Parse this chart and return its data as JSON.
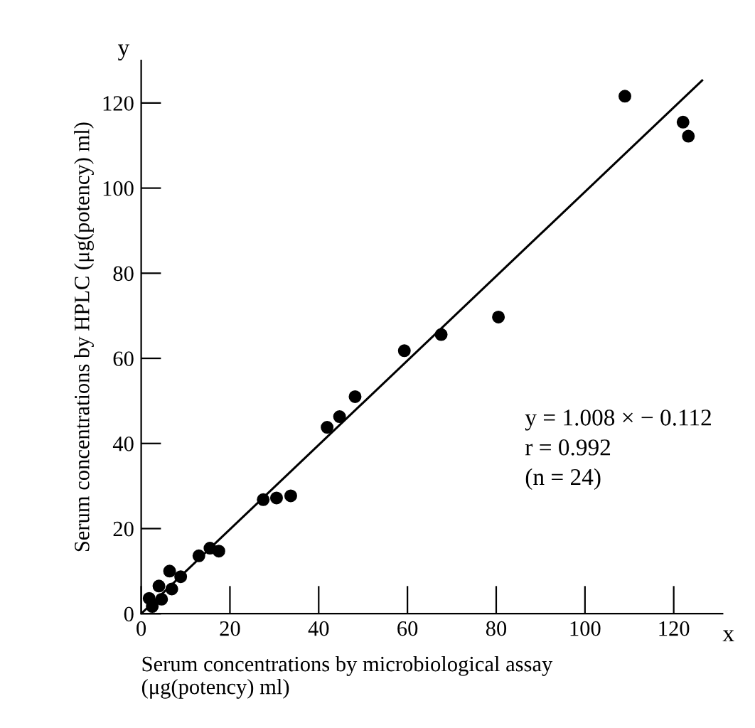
{
  "chart_data": {
    "type": "scatter",
    "xlabel": "Serum concentrations by microbiological assay\n(μg(potency) ml)",
    "ylabel": "Serum concentrations by HPLC (μg(potency) ml)",
    "annotations": [
      "x",
      "y",
      "y = 1.008 × − 0.112\nr = 0.992\n(n = 24)"
    ],
    "xlim": [
      0,
      131
    ],
    "ylim": [
      0,
      130
    ],
    "xticks": [
      0,
      20,
      40,
      60,
      80,
      100,
      120
    ],
    "yticks": [
      0,
      20,
      40,
      60,
      80,
      100,
      120
    ],
    "grid": false,
    "legend": false,
    "series": [
      {
        "color": "#000000",
        "marker": "circle",
        "x": [
          1.8,
          2.5,
          4.0,
          4.6,
          6.4,
          6.9,
          8.9,
          13.0,
          15.5,
          17.5,
          27.5,
          30.5,
          33.7,
          41.9,
          44.7,
          48.2,
          59.3,
          67.6,
          80.5,
          109.0,
          122.1,
          123.3
        ],
        "values": [
          3.6,
          1.7,
          6.5,
          3.4,
          10.0,
          5.8,
          8.7,
          13.6,
          15.4,
          14.7,
          26.8,
          27.2,
          27.7,
          43.8,
          46.3,
          51.0,
          61.8,
          65.6,
          69.7,
          121.6,
          115.5,
          112.2
        ]
      },
      {
        "type": "line",
        "marker": "none",
        "color": "#000000",
        "x": [
          0,
          126.4
        ],
        "values": [
          0,
          125.3
        ]
      }
    ]
  }
}
